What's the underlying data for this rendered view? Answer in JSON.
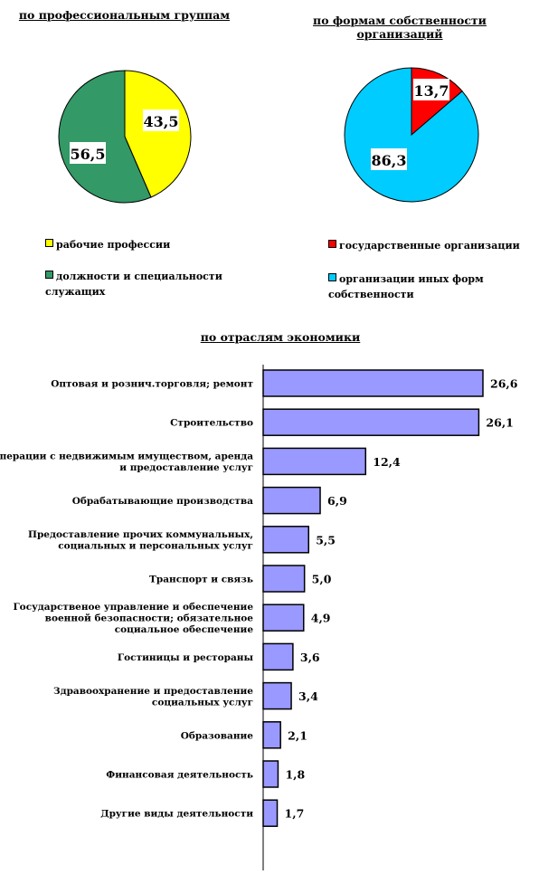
{
  "chart_data": [
    {
      "type": "pie",
      "title": "по профессиональным группам",
      "slices": [
        {
          "label": "рабочие профессии",
          "value": 43.5,
          "display": "43,5",
          "color": "#ffff00"
        },
        {
          "label": "должности и специальности служащих",
          "value": 56.5,
          "display": "56,5",
          "color": "#339966"
        }
      ]
    },
    {
      "type": "pie",
      "title": "по формам собственности организаций",
      "slices": [
        {
          "label": "государственные организации",
          "value": 13.7,
          "display": "13,7",
          "color": "#ff0000"
        },
        {
          "label": "организации иных форм собственности",
          "value": 86.3,
          "display": "86,3",
          "color": "#00ccff"
        }
      ]
    },
    {
      "type": "bar",
      "orientation": "horizontal",
      "title": "по отраслям экономики",
      "bar_color": "#9999ff",
      "categories": [
        "Оптовая и рознич.торговля; ремонт",
        "Строительство",
        "Операции с недвижимым имуществом, аренда и предоставление услуг",
        "Обрабатывающие производства",
        "Предоставление прочих коммунальных, социальных и персональных услуг",
        "Транспорт и связь",
        "Государственое управление и обеспечение военной безопасности; обязательное социальное обеспечение",
        "Гостиницы и рестораны",
        "Здравоохранение и предоставление социальных услуг",
        "Образование",
        "Финансовая деятельность",
        "Другие виды деятельности"
      ],
      "values": [
        26.6,
        26.1,
        12.4,
        6.9,
        5.5,
        5.0,
        4.9,
        3.6,
        3.4,
        2.1,
        1.8,
        1.7
      ],
      "labels": [
        "26,6",
        "26,1",
        "12,4",
        "6,9",
        "5,5",
        "5,0",
        "4,9",
        "3,6",
        "3,4",
        "2,1",
        "1,8",
        "1,7"
      ]
    }
  ]
}
